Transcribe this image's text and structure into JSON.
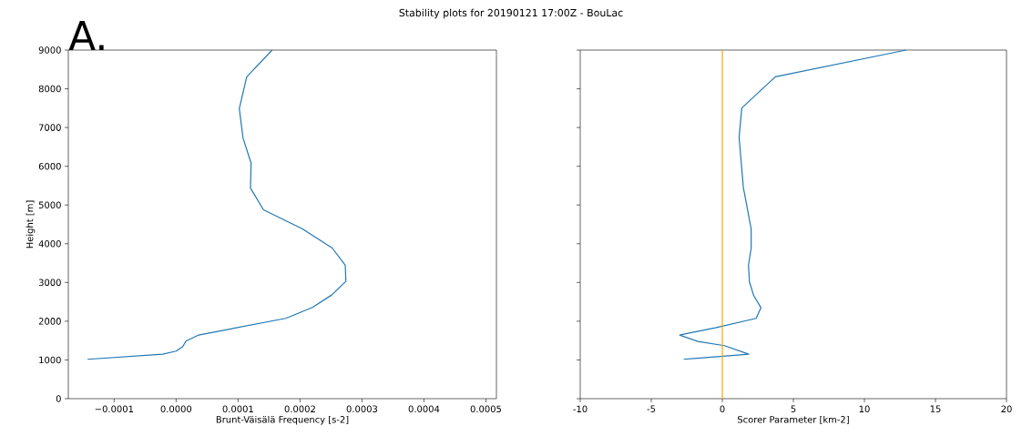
{
  "chart_data": [
    {
      "type": "line",
      "title": "Stability plots for 20190121 17:00Z - BouLac",
      "annotations": [
        "A."
      ],
      "xlabel": "Brunt-Väisälä Frequency [s-2]",
      "ylabel": "Height [m]",
      "xlim": [
        -0.000174,
        0.000517
      ],
      "ylim": [
        0,
        9000
      ],
      "xticks": [
        {
          "value": -0.0001,
          "label": "−0.0001"
        },
        {
          "value": 0,
          "label": "0.0000"
        },
        {
          "value": 0.0001,
          "label": "0.0001"
        },
        {
          "value": 0.0002,
          "label": "0.0002"
        },
        {
          "value": 0.0003,
          "label": "0.0003"
        },
        {
          "value": 0.0004,
          "label": "0.0004"
        },
        {
          "value": 0.0005,
          "label": "0.0005"
        }
      ],
      "yticks": [
        0,
        1000,
        2000,
        3000,
        4000,
        5000,
        6000,
        7000,
        8000,
        9000
      ],
      "series": [
        {
          "color": "#1f77b4",
          "x": [
            -0.000143,
            -2.17e-05,
            0.0,
            1.08e-05,
            1.58e-05,
            3.65e-05,
            0.000177,
            0.00022,
            0.000251,
            0.000274,
            0.000273,
            0.000252,
            0.000204,
            0.000141,
            0.00012,
            0.000121,
            0.000108,
            0.000102,
            0.000114,
            0.000155
          ],
          "values": [
            1017,
            1150,
            1228,
            1346,
            1487,
            1643,
            2074,
            2355,
            2676,
            3028,
            3443,
            3889,
            4382,
            4875,
            5438,
            6080,
            6729,
            7488,
            8310,
            9000
          ]
        }
      ]
    },
    {
      "type": "line",
      "xlabel": "Scorer Parameter [km-2]",
      "xlim": [
        -10,
        20
      ],
      "ylim": [
        0,
        9000
      ],
      "tick_labels": "x",
      "xticks": [
        -10,
        -5,
        0,
        5,
        10,
        15,
        20
      ],
      "yticks": [
        0,
        1000,
        2000,
        3000,
        4000,
        5000,
        6000,
        7000,
        8000,
        9000
      ],
      "ref_lines": [
        {
          "axis": "x",
          "value": 0,
          "color": "#ffa500"
        }
      ],
      "series": [
        {
          "color": "#1f77b4",
          "x": [
            -2.72,
            1.86,
            0.15,
            -1.73,
            -3.0,
            -0.49,
            2.38,
            2.72,
            2.21,
            1.91,
            1.84,
            2.03,
            2.03,
            1.48,
            1.18,
            1.37,
            3.73,
            12.93
          ],
          "values": [
            1017,
            1150,
            1369,
            1479,
            1643,
            1831,
            2074,
            2348,
            2660,
            3013,
            3443,
            3889,
            4382,
            5454,
            6745,
            7504,
            8310,
            9000
          ]
        }
      ]
    }
  ]
}
